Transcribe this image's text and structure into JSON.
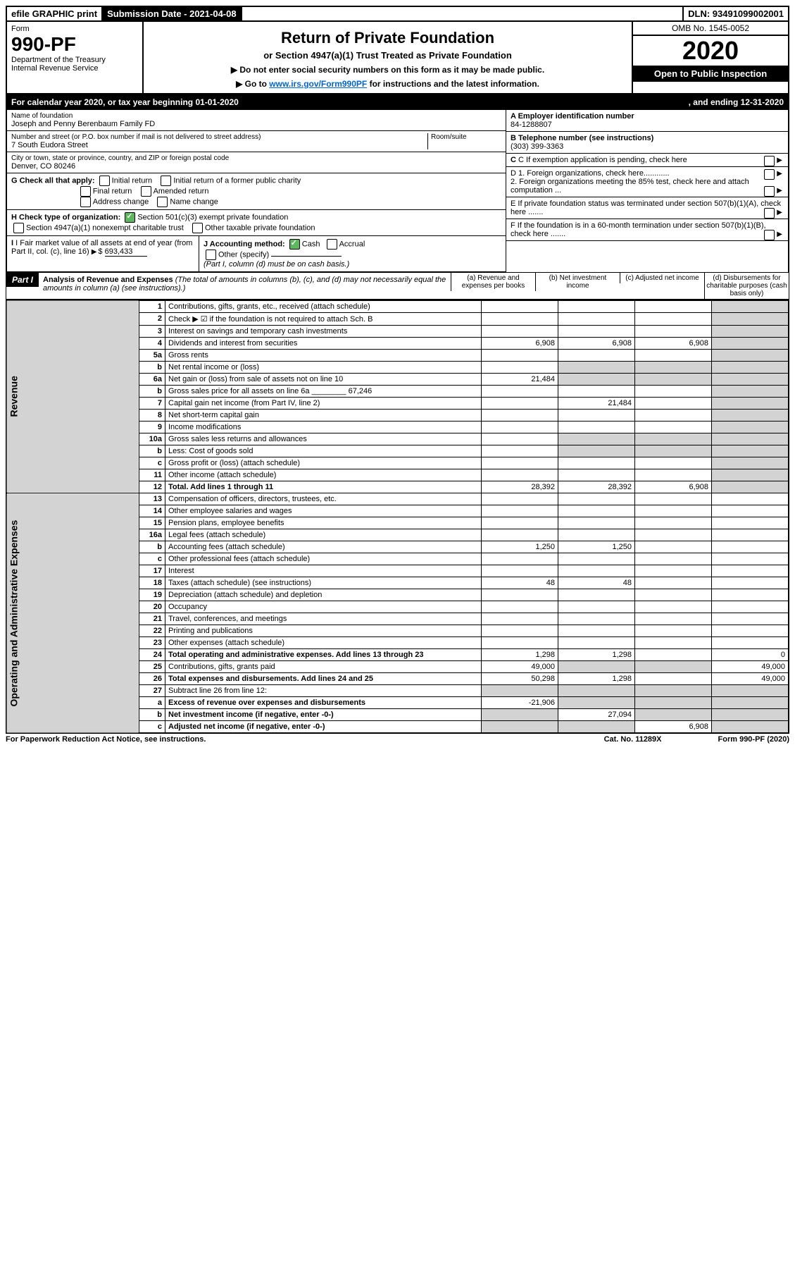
{
  "topbar": {
    "efile": "efile GRAPHIC print",
    "submission": "Submission Date - 2021-04-08",
    "dln": "DLN: 93491099002001"
  },
  "header": {
    "form": "Form",
    "num": "990-PF",
    "dept": "Department of the Treasury",
    "irs": "Internal Revenue Service",
    "title": "Return of Private Foundation",
    "subtitle": "or Section 4947(a)(1) Trust Treated as Private Foundation",
    "instr1": "▶ Do not enter social security numbers on this form as it may be made public.",
    "instr2_pre": "▶ Go to ",
    "instr2_link": "www.irs.gov/Form990PF",
    "instr2_post": " for instructions and the latest information.",
    "omb": "OMB No. 1545-0052",
    "year": "2020",
    "open": "Open to Public Inspection"
  },
  "calyear": {
    "left": "For calendar year 2020, or tax year beginning 01-01-2020",
    "right": ", and ending 12-31-2020"
  },
  "entity": {
    "name_lbl": "Name of foundation",
    "name": "Joseph and Penny Berenbaum Family FD",
    "addr_lbl": "Number and street (or P.O. box number if mail is not delivered to street address)",
    "addr": "7 South Eudora Street",
    "room_lbl": "Room/suite",
    "city_lbl": "City or town, state or province, country, and ZIP or foreign postal code",
    "city": "Denver, CO  80246",
    "ein_lbl": "A Employer identification number",
    "ein": "84-1288807",
    "phone_lbl": "B Telephone number (see instructions)",
    "phone": "(303) 399-3363",
    "c": "C If exemption application is pending, check here",
    "d1": "D 1. Foreign organizations, check here............",
    "d2": "2. Foreign organizations meeting the 85% test, check here and attach computation ...",
    "e": "E If private foundation status was terminated under section 507(b)(1)(A), check here .......",
    "f": "F If the foundation is in a 60-month termination under section 507(b)(1)(B), check here .......",
    "g_lbl": "G Check all that apply:",
    "g": {
      "initial": "Initial return",
      "initial_former": "Initial return of a former public charity",
      "final": "Final return",
      "amended": "Amended return",
      "addr_change": "Address change",
      "name_change": "Name change"
    },
    "h_lbl": "H Check type of organization:",
    "h501": "Section 501(c)(3) exempt private foundation",
    "h4947": "Section 4947(a)(1) nonexempt charitable trust",
    "hother": "Other taxable private foundation",
    "i_lbl": "I Fair market value of all assets at end of year (from Part II, col. (c), line 16)",
    "i_val": "693,433",
    "j_lbl": "J Accounting method:",
    "j_cash": "Cash",
    "j_accrual": "Accrual",
    "j_other": "Other (specify)",
    "j_note": "(Part I, column (d) must be on cash basis.)"
  },
  "part1": {
    "label": "Part I",
    "title": "Analysis of Revenue and Expenses",
    "note": "(The total of amounts in columns (b), (c), and (d) may not necessarily equal the amounts in column (a) (see instructions).)",
    "cols": {
      "a": "(a) Revenue and expenses per books",
      "b": "(b) Net investment income",
      "c": "(c) Adjusted net income",
      "d": "(d) Disbursements for charitable purposes (cash basis only)"
    }
  },
  "side": {
    "revenue": "Revenue",
    "expenses": "Operating and Administrative Expenses"
  },
  "rows": [
    {
      "n": "1",
      "d": "Contributions, gifts, grants, etc., received (attach schedule)"
    },
    {
      "n": "2",
      "d": "Check ▶ ☑ if the foundation is not required to attach Sch. B"
    },
    {
      "n": "3",
      "d": "Interest on savings and temporary cash investments"
    },
    {
      "n": "4",
      "d": "Dividends and interest from securities",
      "a": "6,908",
      "b": "6,908",
      "c": "6,908"
    },
    {
      "n": "5a",
      "d": "Gross rents"
    },
    {
      "n": "b",
      "d": "Net rental income or (loss)"
    },
    {
      "n": "6a",
      "d": "Net gain or (loss) from sale of assets not on line 10",
      "a": "21,484"
    },
    {
      "n": "b",
      "d": "Gross sales price for all assets on line 6a ________ 67,246"
    },
    {
      "n": "7",
      "d": "Capital gain net income (from Part IV, line 2)",
      "b": "21,484"
    },
    {
      "n": "8",
      "d": "Net short-term capital gain"
    },
    {
      "n": "9",
      "d": "Income modifications"
    },
    {
      "n": "10a",
      "d": "Gross sales less returns and allowances"
    },
    {
      "n": "b",
      "d": "Less: Cost of goods sold"
    },
    {
      "n": "c",
      "d": "Gross profit or (loss) (attach schedule)"
    },
    {
      "n": "11",
      "d": "Other income (attach schedule)"
    },
    {
      "n": "12",
      "d": "Total. Add lines 1 through 11",
      "a": "28,392",
      "b": "28,392",
      "c": "6,908",
      "bold": true
    },
    {
      "n": "13",
      "d": "Compensation of officers, directors, trustees, etc."
    },
    {
      "n": "14",
      "d": "Other employee salaries and wages"
    },
    {
      "n": "15",
      "d": "Pension plans, employee benefits"
    },
    {
      "n": "16a",
      "d": "Legal fees (attach schedule)"
    },
    {
      "n": "b",
      "d": "Accounting fees (attach schedule)",
      "a": "1,250",
      "b": "1,250"
    },
    {
      "n": "c",
      "d": "Other professional fees (attach schedule)"
    },
    {
      "n": "17",
      "d": "Interest"
    },
    {
      "n": "18",
      "d": "Taxes (attach schedule) (see instructions)",
      "a": "48",
      "b": "48"
    },
    {
      "n": "19",
      "d": "Depreciation (attach schedule) and depletion"
    },
    {
      "n": "20",
      "d": "Occupancy"
    },
    {
      "n": "21",
      "d": "Travel, conferences, and meetings"
    },
    {
      "n": "22",
      "d": "Printing and publications"
    },
    {
      "n": "23",
      "d": "Other expenses (attach schedule)"
    },
    {
      "n": "24",
      "d": "Total operating and administrative expenses. Add lines 13 through 23",
      "a": "1,298",
      "b": "1,298",
      "dv": "0",
      "bold": true
    },
    {
      "n": "25",
      "d": "Contributions, gifts, grants paid",
      "a": "49,000",
      "dv": "49,000"
    },
    {
      "n": "26",
      "d": "Total expenses and disbursements. Add lines 24 and 25",
      "a": "50,298",
      "b": "1,298",
      "dv": "49,000",
      "bold": true
    },
    {
      "n": "27",
      "d": "Subtract line 26 from line 12:"
    },
    {
      "n": "a",
      "d": "Excess of revenue over expenses and disbursements",
      "a": "-21,906",
      "bold": true
    },
    {
      "n": "b",
      "d": "Net investment income (if negative, enter -0-)",
      "b": "27,094",
      "bold": true
    },
    {
      "n": "c",
      "d": "Adjusted net income (if negative, enter -0-)",
      "c": "6,908",
      "bold": true
    }
  ],
  "footer": {
    "left": "For Paperwork Reduction Act Notice, see instructions.",
    "mid": "Cat. No. 11289X",
    "right": "Form 990-PF (2020)"
  }
}
